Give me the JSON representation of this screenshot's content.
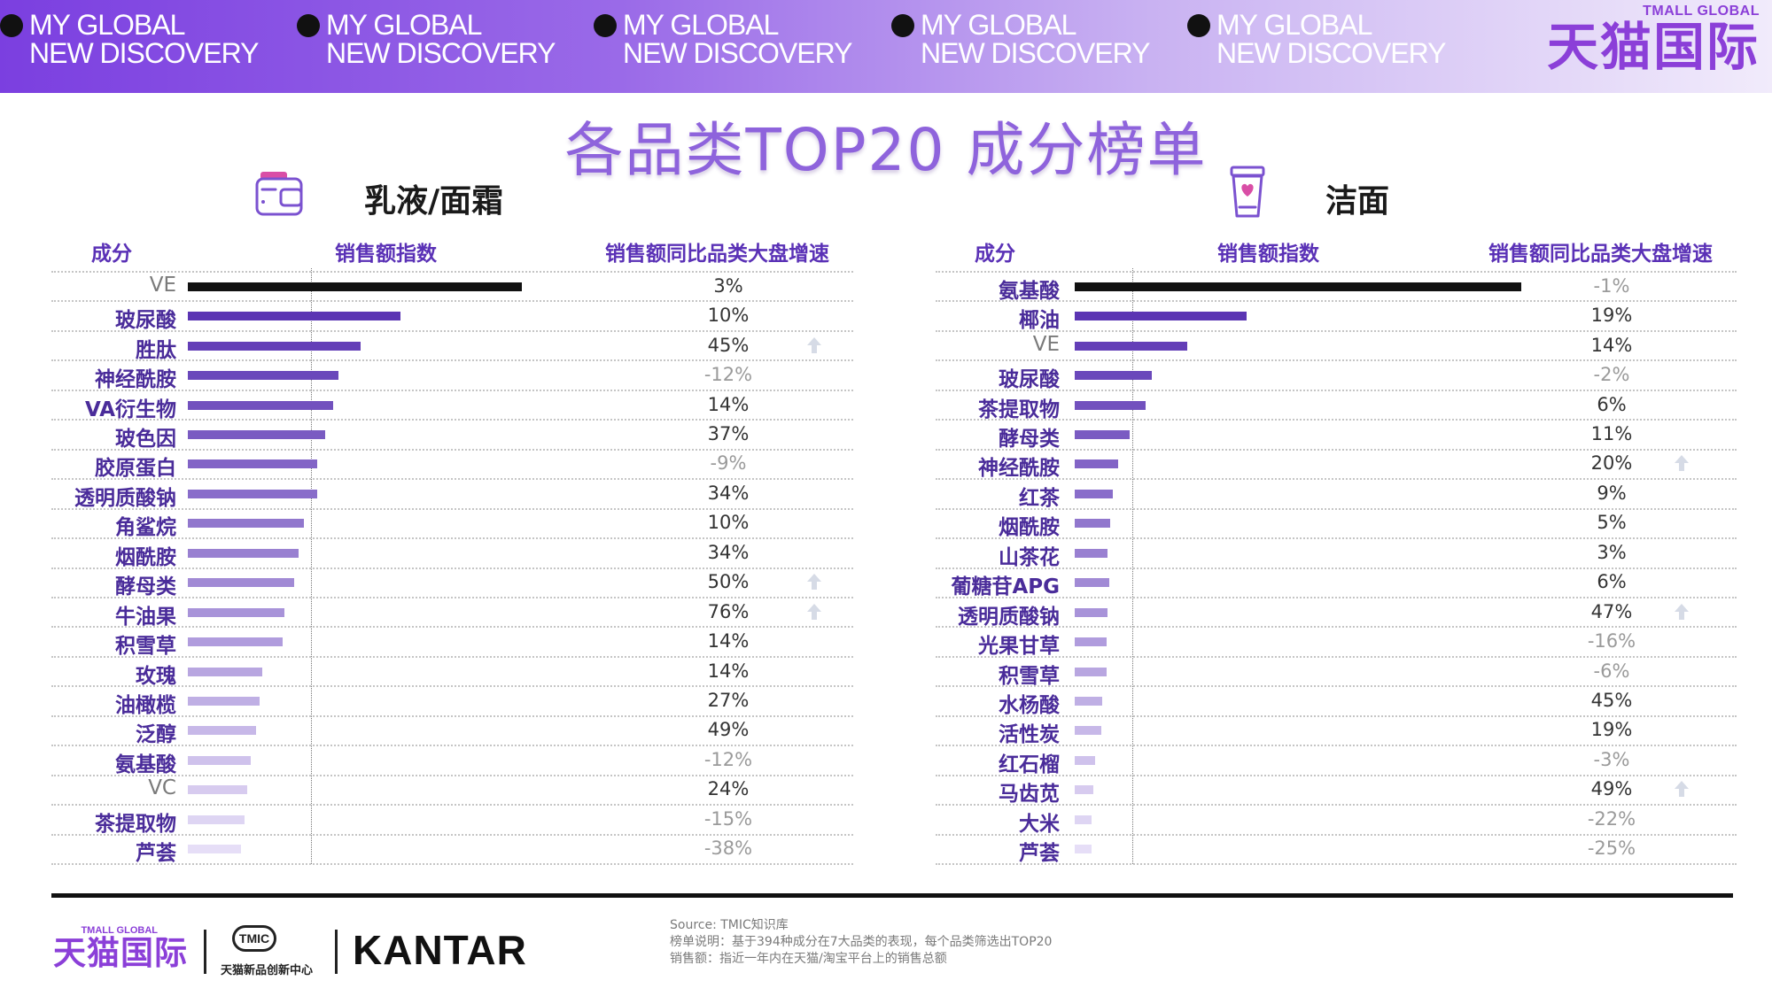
{
  "banner": {
    "slogans": [
      {
        "line1": "MY GLOBAL",
        "line2": "NEW DISCOVERY"
      },
      {
        "line1": "MY GLOBAL",
        "line2": "NEW DISCOVERY"
      },
      {
        "line1": "MY GLOBAL",
        "line2": "NEW DISCOVERY"
      },
      {
        "line1": "MY GLOBAL",
        "line2": "NEW DISCOVERY"
      },
      {
        "line1": "MY GLOBAL",
        "line2": "NEW DISCOVERY"
      }
    ],
    "brand_en": "TMALL GLOBAL",
    "brand_cn": "天猫国际"
  },
  "title": "各品类TOP20 成分榜单",
  "column_headers": {
    "ingredient": "成分",
    "sales_index": "销售额指数",
    "growth": "销售额同比品类大盘增速"
  },
  "colors": {
    "brand_purple": "#8b3fd8",
    "header_purple": "#5a31b6",
    "top_bar": "#111111",
    "bar_gradient": [
      "#5b35b3",
      "#e6def7"
    ],
    "arrow_icon": "#d6dbe6"
  },
  "chart_data": [
    {
      "type": "bar",
      "orientation": "horizontal",
      "title": "乳液/面霜",
      "icon": "cream-jar-icon",
      "xlabel": "销售额指数",
      "categories": [
        "VE",
        "玻尿酸",
        "胜肽",
        "神经酰胺",
        "VA衍生物",
        "玻色因",
        "胶原蛋白",
        "透明质酸钠",
        "角鲨烷",
        "烟酰胺",
        "酵母类",
        "牛油果",
        "积雪草",
        "玫瑰",
        "油橄榄",
        "泛醇",
        "氨基酸",
        "VC",
        "茶提取物",
        "芦荟"
      ],
      "values": [
        271,
        172,
        140,
        122,
        118,
        111,
        105,
        105,
        94,
        90,
        86,
        78,
        77,
        60,
        58,
        55,
        51,
        48,
        46,
        43
      ],
      "xlim": [
        0,
        280
      ],
      "reference_line": 100,
      "growth_label": "销售额同比品类大盘增速",
      "growth": [
        "3%",
        "10%",
        "45%",
        "-12%",
        "14%",
        "37%",
        "-9%",
        "34%",
        "10%",
        "34%",
        "50%",
        "76%",
        "14%",
        "14%",
        "27%",
        "49%",
        "-12%",
        "24%",
        "-15%",
        "-38%"
      ],
      "growth_arrows": [
        false,
        false,
        true,
        false,
        false,
        false,
        false,
        false,
        false,
        false,
        true,
        true,
        false,
        false,
        false,
        false,
        false,
        false,
        false,
        false
      ]
    },
    {
      "type": "bar",
      "orientation": "horizontal",
      "title": "洁面",
      "icon": "cleanser-tube-icon",
      "xlabel": "销售额指数",
      "categories": [
        "氨基酸",
        "椰油",
        "VE",
        "玻尿酸",
        "茶提取物",
        "酵母类",
        "神经酰胺",
        "红茶",
        "烟酰胺",
        "山茶花",
        "葡糖苷APG",
        "透明质酸钠",
        "光果甘草",
        "积雪草",
        "水杨酸",
        "活性炭",
        "红石榴",
        "马齿苋",
        "大米",
        "芦荟"
      ],
      "values": [
        390,
        150,
        98,
        67,
        62,
        48,
        38,
        33,
        31,
        29,
        30,
        29,
        28,
        28,
        24,
        23,
        18,
        16,
        15,
        15
      ],
      "xlim": [
        0,
        400
      ],
      "reference_line": 50,
      "growth_label": "销售额同比品类大盘增速",
      "growth": [
        "-1%",
        "19%",
        "14%",
        "-2%",
        "6%",
        "11%",
        "20%",
        "9%",
        "5%",
        "3%",
        "6%",
        "47%",
        "-16%",
        "-6%",
        "45%",
        "19%",
        "-3%",
        "49%",
        "-22%",
        "-25%"
      ],
      "growth_arrows": [
        false,
        false,
        false,
        false,
        false,
        false,
        true,
        false,
        false,
        false,
        false,
        true,
        false,
        false,
        false,
        false,
        false,
        true,
        false,
        false
      ]
    }
  ],
  "footer": {
    "brand_en": "TMALL GLOBAL",
    "brand_cn": "天猫国际",
    "tmic_logo": "TMIC",
    "tmic_name": "天猫新品创新中心",
    "kantar": "KANTAR",
    "source": "Source: TMIC知识库",
    "note1": "榜单说明：基于394种成分在7大品类的表现，每个品类筛选出TOP20",
    "note2": "销售额：指近一年内在天猫/淘宝平台上的销售总额"
  }
}
